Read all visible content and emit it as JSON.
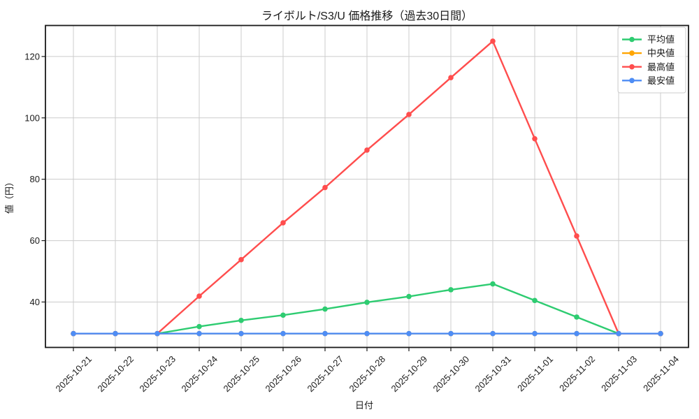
{
  "chart_data": {
    "type": "line",
    "title": "ライボルト/S3/U 価格推移（過去30日間）",
    "xlabel": "日付",
    "ylabel": "値（円）",
    "x": [
      "2025-10-21",
      "2025-10-22",
      "2025-10-23",
      "2025-10-24",
      "2025-10-25",
      "2025-10-26",
      "2025-10-27",
      "2025-10-28",
      "2025-10-29",
      "2025-10-30",
      "2025-10-31",
      "2025-11-01",
      "2025-11-02",
      "2025-11-03",
      "2025-11-04"
    ],
    "series": [
      {
        "key": "average",
        "name": "平均値",
        "color": "#2ecc71",
        "values": [
          29.7,
          29.7,
          29.7,
          32.0,
          34.0,
          35.7,
          37.7,
          39.9,
          41.8,
          44.0,
          45.9,
          40.5,
          35.1,
          29.7,
          29.7
        ]
      },
      {
        "key": "median",
        "name": "中央値",
        "color": "#ffa502",
        "values": [
          29.7,
          29.7,
          29.7,
          29.7,
          29.7,
          29.7,
          29.7,
          29.7,
          29.7,
          29.7,
          29.7,
          29.7,
          29.7,
          29.7,
          29.7
        ]
      },
      {
        "key": "max",
        "name": "最高値",
        "color": "#ff4d4d",
        "values": [
          29.7,
          29.7,
          29.7,
          41.9,
          53.8,
          65.8,
          77.3,
          89.5,
          101.1,
          113.1,
          125.0,
          93.2,
          61.5,
          29.7,
          29.7
        ]
      },
      {
        "key": "min",
        "name": "最安値",
        "color": "#4e8df5",
        "values": [
          29.7,
          29.7,
          29.7,
          29.7,
          29.7,
          29.7,
          29.7,
          29.7,
          29.7,
          29.7,
          29.7,
          29.7,
          29.7,
          29.7,
          29.7
        ]
      }
    ],
    "yticks": [
      40,
      60,
      80,
      100,
      120
    ],
    "ylim": [
      25.2,
      130.1
    ],
    "x_tick_rotation": 45,
    "grid": true,
    "legend": {
      "position": "upper right"
    },
    "style": {
      "background": "#ffffff",
      "grid_color": "#cccccc",
      "spine_color": "#1a1a1a",
      "legend_border": "#cccccc"
    }
  }
}
